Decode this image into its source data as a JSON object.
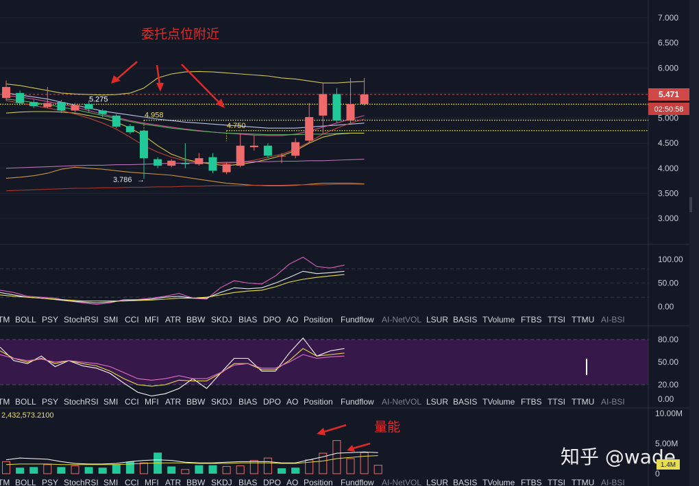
{
  "colors": {
    "background": "#141824",
    "grid": "#262c3a",
    "up": "#ef6b6b",
    "down": "#20c997",
    "annotation": "#e02a2a",
    "level": "#f0e04a",
    "tab_active": "#d5d8df",
    "tab_inactive": "#7c8291"
  },
  "indicator_tabs": [
    {
      "label": "TM",
      "active": true
    },
    {
      "label": "BOLL",
      "active": true
    },
    {
      "label": "PSY",
      "active": true
    },
    {
      "label": "StochRSI",
      "active": true
    },
    {
      "label": "SMI",
      "active": true
    },
    {
      "label": "CCI",
      "active": true
    },
    {
      "label": "MFI",
      "active": true
    },
    {
      "label": "ATR",
      "active": true
    },
    {
      "label": "BBW",
      "active": true
    },
    {
      "label": "SKDJ",
      "active": true
    },
    {
      "label": "BIAS",
      "active": true
    },
    {
      "label": "DPO",
      "active": true
    },
    {
      "label": "AO",
      "active": true
    },
    {
      "label": "Position",
      "active": true
    },
    {
      "label": "Fundflow",
      "active": true
    },
    {
      "label": "AI-NetVOL",
      "active": false
    },
    {
      "label": "LSUR",
      "active": true
    },
    {
      "label": "BASIS",
      "active": true
    },
    {
      "label": "TVolume",
      "active": true
    },
    {
      "label": "FTBS",
      "active": true
    },
    {
      "label": "TTSI",
      "active": true
    },
    {
      "label": "TTMU",
      "active": true
    },
    {
      "label": "AI-BSI",
      "active": false
    }
  ],
  "price_panel": {
    "y_ticks": [
      "7.000",
      "6.500",
      "6.000",
      "5.500",
      "5.000",
      "4.500",
      "4.000",
      "3.500",
      "3.000"
    ],
    "current_price": "5.471",
    "countdown": "02:50:58",
    "annotation_text": "委托点位附近",
    "levels": [
      {
        "label": "5.275",
        "value": 5.275
      },
      {
        "label": "4.958",
        "value": 4.958
      },
      {
        "label": "4.750",
        "value": 4.75
      }
    ],
    "low_label": "3.786",
    "low_arrow": "→"
  },
  "osc_panel": {
    "y_ticks": [
      "100.00",
      "50.00",
      "0.00"
    ]
  },
  "stoch_panel": {
    "y_ticks": [
      "80.00",
      "50.00",
      "20.00",
      "0.00"
    ]
  },
  "volume_panel": {
    "y_ticks": [
      "10.00M",
      "5.00M",
      "0"
    ],
    "value_label": "2,432,573.2100",
    "badge": "1.4M",
    "annotation_text": "量能"
  },
  "watermark": "知乎 @wade",
  "chart_data": [
    {
      "type": "candlestick",
      "title": "",
      "ylim": [
        2.6,
        7.3
      ],
      "candles": [
        {
          "o": 5.4,
          "c": 5.62,
          "h": 5.75,
          "l": 5.35
        },
        {
          "o": 5.5,
          "c": 5.3,
          "h": 5.55,
          "l": 5.25
        },
        {
          "o": 5.32,
          "c": 5.24,
          "h": 5.36,
          "l": 5.2
        },
        {
          "o": 5.22,
          "c": 5.3,
          "h": 5.62,
          "l": 5.2
        },
        {
          "o": 5.32,
          "c": 5.15,
          "h": 5.36,
          "l": 5.1
        },
        {
          "o": 5.15,
          "c": 5.26,
          "h": 5.3,
          "l": 5.12
        },
        {
          "o": 5.28,
          "c": 5.18,
          "h": 5.35,
          "l": 5.12
        },
        {
          "o": 5.15,
          "c": 5.08,
          "h": 5.18,
          "l": 5.02
        },
        {
          "o": 5.05,
          "c": 4.83,
          "h": 5.08,
          "l": 4.8
        },
        {
          "o": 4.84,
          "c": 4.72,
          "h": 4.88,
          "l": 4.68
        },
        {
          "o": 4.75,
          "c": 4.2,
          "h": 4.75,
          "l": 3.786
        },
        {
          "o": 4.18,
          "c": 4.05,
          "h": 4.22,
          "l": 4.0
        },
        {
          "o": 4.05,
          "c": 4.15,
          "h": 4.18,
          "l": 4.02
        },
        {
          "o": 4.1,
          "c": 4.08,
          "h": 4.5,
          "l": 4.0
        },
        {
          "o": 4.08,
          "c": 4.2,
          "h": 4.3,
          "l": 4.05
        },
        {
          "o": 4.22,
          "c": 3.95,
          "h": 4.3,
          "l": 3.9
        },
        {
          "o": 3.92,
          "c": 4.08,
          "h": 4.12,
          "l": 3.88
        },
        {
          "o": 4.05,
          "c": 4.45,
          "h": 4.7,
          "l": 4.02
        },
        {
          "o": 4.42,
          "c": 4.45,
          "h": 4.65,
          "l": 4.35
        },
        {
          "o": 4.45,
          "c": 4.25,
          "h": 4.5,
          "l": 4.2
        },
        {
          "o": 4.25,
          "c": 4.25,
          "h": 4.3,
          "l": 4.1
        },
        {
          "o": 4.25,
          "c": 4.52,
          "h": 4.6,
          "l": 4.2
        },
        {
          "o": 4.55,
          "c": 5.02,
          "h": 5.3,
          "l": 4.5
        },
        {
          "o": 5.05,
          "c": 5.48,
          "h": 5.7,
          "l": 4.68
        },
        {
          "o": 5.48,
          "c": 4.95,
          "h": 5.6,
          "l": 4.9
        },
        {
          "o": 4.95,
          "c": 5.28,
          "h": 5.8,
          "l": 4.9
        },
        {
          "o": 5.28,
          "c": 5.471,
          "h": 5.8,
          "l": 5.25
        }
      ],
      "overlays": [
        {
          "color": "#e6d95a",
          "values": [
            5.68,
            5.65,
            5.6,
            5.55,
            5.5,
            5.48,
            5.47,
            5.46,
            5.47,
            5.5,
            5.6,
            5.8,
            5.88,
            5.92,
            5.93,
            5.92,
            5.9,
            5.88,
            5.86,
            5.84,
            5.8,
            5.78,
            5.74,
            5.7,
            5.7,
            5.72,
            5.73
          ]
        },
        {
          "color": "#d0d6ff",
          "values": [
            5.5,
            5.46,
            5.42,
            5.38,
            5.32,
            5.26,
            5.2,
            5.14,
            5.1,
            5.06,
            5.02,
            4.98,
            4.95,
            4.92,
            4.9,
            4.88,
            4.86,
            4.84,
            4.82,
            4.8,
            4.8,
            4.8,
            4.82,
            4.84,
            4.86,
            4.88,
            4.9
          ]
        },
        {
          "color": "#e0559a",
          "values": [
            5.45,
            5.42,
            5.38,
            5.33,
            5.28,
            5.22,
            5.15,
            5.08,
            5.01,
            4.95,
            4.9,
            4.86,
            4.82,
            4.78,
            4.75,
            4.72,
            4.7,
            4.68,
            4.66,
            4.65,
            4.65,
            4.68,
            4.74,
            4.82,
            4.9,
            4.98,
            5.05
          ]
        },
        {
          "color": "#56c464",
          "values": [
            5.38,
            5.35,
            5.31,
            5.27,
            5.22,
            5.17,
            5.11,
            5.05,
            4.99,
            4.93,
            4.88,
            4.84,
            4.8,
            4.77,
            4.74,
            4.72,
            4.7,
            4.69,
            4.68,
            4.67,
            4.67,
            4.67,
            4.68,
            4.68,
            4.69,
            4.7,
            4.7
          ]
        },
        {
          "color": "#e8dc50",
          "values": [
            5.1,
            5.12,
            5.13,
            5.13,
            5.12,
            5.1,
            5.05,
            5.0,
            4.92,
            4.8,
            4.65,
            4.45,
            4.28,
            4.18,
            4.12,
            4.08,
            4.05,
            4.08,
            4.12,
            4.18,
            4.25,
            4.35,
            4.5,
            4.62,
            4.68,
            4.7,
            4.7
          ]
        },
        {
          "color": "#d24a3c",
          "values": [
            5.35,
            5.3,
            5.25,
            5.2,
            5.15,
            5.08,
            5.0,
            4.9,
            4.78,
            4.62,
            4.45,
            4.32,
            4.22,
            4.15,
            4.12,
            4.1,
            4.1,
            4.12,
            4.16,
            4.22,
            4.28,
            4.38,
            4.52,
            4.68,
            4.8,
            4.9,
            4.98
          ]
        },
        {
          "color": "#c87ac8",
          "values": [
            4.0,
            4.01,
            4.02,
            4.03,
            4.04,
            4.05,
            4.06,
            4.06,
            4.07,
            4.07,
            4.08,
            4.09,
            4.1,
            4.1,
            4.11,
            4.11,
            4.12,
            4.12,
            4.13,
            4.13,
            4.14,
            4.14,
            4.15,
            4.15,
            4.16,
            4.17,
            4.18
          ]
        },
        {
          "color": "#e0a040",
          "values": [
            3.8,
            3.82,
            3.85,
            3.9,
            3.98,
            4.02,
            4.0,
            3.98,
            3.95,
            3.92,
            3.9,
            3.88,
            3.86,
            3.82,
            3.78,
            3.74,
            3.7,
            3.68,
            3.66,
            3.65,
            3.65,
            3.66,
            3.68,
            3.7,
            3.7,
            3.7,
            3.69
          ]
        },
        {
          "color": "#c0392b",
          "values": [
            3.55,
            3.56,
            3.57,
            3.58,
            3.59,
            3.6,
            3.6,
            3.61,
            3.61,
            3.62,
            3.62,
            3.63,
            3.63,
            3.64,
            3.64,
            3.65,
            3.65,
            3.65,
            3.66,
            3.66,
            3.66,
            3.67,
            3.67,
            3.67,
            3.68,
            3.68,
            3.68
          ]
        }
      ]
    },
    {
      "type": "line",
      "title": "",
      "ylim": [
        -10,
        120
      ],
      "reference_lines": [
        80,
        50,
        20
      ],
      "series": [
        {
          "color": "#e060c0",
          "values": [
            35,
            30,
            22,
            20,
            18,
            12,
            8,
            5,
            8,
            15,
            15,
            18,
            22,
            28,
            18,
            16,
            40,
            55,
            50,
            48,
            65,
            90,
            105,
            85,
            82,
            88
          ]
        },
        {
          "color": "#e8e8f0",
          "values": [
            30,
            25,
            20,
            18,
            15,
            12,
            10,
            8,
            10,
            13,
            14,
            16,
            20,
            22,
            18,
            18,
            30,
            40,
            38,
            40,
            50,
            62,
            75,
            70,
            72,
            75
          ]
        },
        {
          "color": "#e8e040",
          "values": [
            25,
            22,
            20,
            18,
            16,
            14,
            12,
            12,
            12,
            12,
            13,
            14,
            16,
            18,
            18,
            20,
            25,
            30,
            33,
            35,
            42,
            52,
            58,
            62,
            65,
            68
          ]
        }
      ]
    },
    {
      "type": "line",
      "title": "",
      "ylim": [
        -5,
        100
      ],
      "reference_lines": [
        80,
        20
      ],
      "series": [
        {
          "color": "#ffffff",
          "values": [
            70,
            52,
            48,
            58,
            44,
            52,
            45,
            42,
            35,
            22,
            10,
            5,
            8,
            15,
            28,
            15,
            35,
            55,
            55,
            38,
            38,
            62,
            82,
            58,
            65,
            68
          ]
        },
        {
          "color": "#e8e040",
          "values": [
            65,
            55,
            50,
            55,
            48,
            52,
            48,
            45,
            38,
            28,
            20,
            18,
            20,
            26,
            25,
            25,
            35,
            48,
            48,
            40,
            40,
            52,
            68,
            58,
            60,
            62
          ]
        },
        {
          "color": "#e070c8",
          "values": [
            60,
            55,
            52,
            54,
            50,
            52,
            50,
            48,
            44,
            36,
            28,
            26,
            28,
            32,
            28,
            28,
            36,
            46,
            48,
            42,
            42,
            50,
            60,
            55,
            57,
            58
          ]
        }
      ]
    },
    {
      "type": "bar",
      "title": "",
      "ylim": [
        0,
        10.5
      ],
      "unit": "M",
      "values": [
        2.0,
        1.0,
        1.1,
        1.5,
        1.1,
        1.3,
        1.1,
        1.0,
        1.5,
        2.0,
        1.8,
        3.5,
        1.2,
        0.7,
        1.4,
        1.4,
        1.2,
        1.3,
        2.2,
        2.6,
        0.9,
        1.0,
        2.3,
        3.4,
        5.5,
        2.5,
        3.5,
        1.4
      ],
      "up": [
        true,
        false,
        false,
        true,
        false,
        true,
        false,
        false,
        false,
        false,
        true,
        false,
        false,
        true,
        false,
        false,
        true,
        true,
        true,
        true,
        false,
        false,
        true,
        true,
        true,
        true,
        true,
        true
      ],
      "ma": [
        {
          "color": "#ffffff",
          "values": [
            2.3,
            2.6,
            2.5,
            2.4,
            2.0,
            1.7,
            1.6,
            1.6,
            1.7,
            2.0,
            2.2,
            2.3,
            2.2,
            1.9,
            1.8,
            1.8,
            1.9,
            2.0,
            2.0,
            2.0,
            1.8,
            1.8,
            2.3,
            2.8,
            3.4,
            3.5,
            3.6,
            3.5
          ]
        },
        {
          "color": "#e8e040",
          "values": [
            1.5,
            1.6,
            1.6,
            1.6,
            1.5,
            1.5,
            1.5,
            1.5,
            1.5,
            1.6,
            1.7,
            1.8,
            1.8,
            1.8,
            1.7,
            1.7,
            1.7,
            1.8,
            1.8,
            1.8,
            1.7,
            1.7,
            1.9,
            2.1,
            2.5,
            2.7,
            2.9,
            3.0
          ]
        }
      ]
    }
  ]
}
